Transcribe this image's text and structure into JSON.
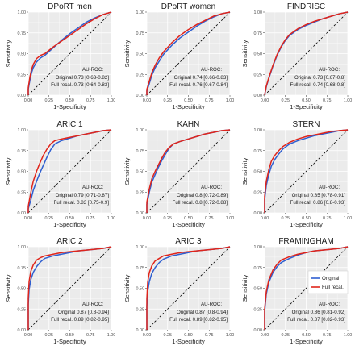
{
  "colors": {
    "original": "#2f5fd0",
    "full_recal": "#e0251b",
    "panel_bg": "#ebebeb",
    "grid": "#ffffff"
  },
  "legend": {
    "original": "Original",
    "full_recal": "Full recal."
  },
  "chart_data": [
    {
      "type": "line",
      "title": "DPoRT men",
      "xlabel": "1-Specificity",
      "ylabel": "Sensitivity",
      "xlim": [
        0,
        1
      ],
      "ylim": [
        0,
        1
      ],
      "ticks": [
        "0.00",
        "0.25",
        "0.50",
        "0.75",
        "1.00"
      ],
      "grid": true,
      "annotation": [
        "AU-ROC:",
        "Original 0.73 [0.63-0.82]",
        "Full recal. 0.73 [0.64-0.83]"
      ],
      "series": [
        {
          "name": "Original",
          "x": [
            0,
            0,
            0.02,
            0.04,
            0.06,
            0.1,
            0.15,
            0.2,
            0.3,
            0.4,
            0.5,
            0.6,
            0.7,
            0.8,
            0.9,
            1
          ],
          "y": [
            0,
            0.07,
            0.18,
            0.27,
            0.33,
            0.4,
            0.45,
            0.48,
            0.57,
            0.66,
            0.74,
            0.81,
            0.88,
            0.93,
            0.97,
            1
          ]
        },
        {
          "name": "Full recal.",
          "x": [
            0,
            0,
            0.02,
            0.04,
            0.06,
            0.1,
            0.15,
            0.2,
            0.3,
            0.4,
            0.5,
            0.6,
            0.7,
            0.8,
            0.9,
            1
          ],
          "y": [
            0,
            0.09,
            0.22,
            0.31,
            0.37,
            0.44,
            0.48,
            0.5,
            0.58,
            0.65,
            0.72,
            0.79,
            0.86,
            0.92,
            0.97,
            1
          ]
        }
      ]
    },
    {
      "type": "line",
      "title": "DPoRT women",
      "xlabel": "1-Specificity",
      "ylabel": "Sensitivity",
      "xlim": [
        0,
        1
      ],
      "ylim": [
        0,
        1
      ],
      "ticks": [
        "0.00",
        "0.25",
        "0.50",
        "0.75",
        "1.00"
      ],
      "grid": true,
      "annotation": [
        "AU-ROC:",
        "Original 0.74 [0.66-0.83]",
        "Full recal. 0.76 [0.67-0.84]"
      ],
      "series": [
        {
          "name": "Original",
          "x": [
            0,
            0,
            0.03,
            0.06,
            0.1,
            0.15,
            0.2,
            0.3,
            0.4,
            0.5,
            0.6,
            0.7,
            0.8,
            0.9,
            1
          ],
          "y": [
            0,
            0.05,
            0.14,
            0.24,
            0.33,
            0.41,
            0.49,
            0.6,
            0.69,
            0.76,
            0.83,
            0.89,
            0.94,
            0.98,
            1
          ]
        },
        {
          "name": "Full recal.",
          "x": [
            0,
            0,
            0.03,
            0.06,
            0.1,
            0.15,
            0.2,
            0.3,
            0.4,
            0.5,
            0.6,
            0.7,
            0.8,
            0.9,
            1
          ],
          "y": [
            0,
            0.07,
            0.17,
            0.27,
            0.36,
            0.45,
            0.52,
            0.63,
            0.72,
            0.79,
            0.85,
            0.9,
            0.95,
            0.98,
            1
          ]
        }
      ]
    },
    {
      "type": "line",
      "title": "FINDRISC",
      "xlabel": "1-Specificity",
      "ylabel": "Sensitivity",
      "xlim": [
        0,
        1
      ],
      "ylim": [
        0,
        1
      ],
      "ticks": [
        "0.00",
        "0.25",
        "0.50",
        "0.75",
        "1.00"
      ],
      "grid": true,
      "annotation": [
        "AU-ROC:",
        "Original 0.73 [0.67-0.8]",
        "Full recal. 0.74 [0.68-0.8]"
      ],
      "series": [
        {
          "name": "Original",
          "x": [
            0,
            0.02,
            0.05,
            0.1,
            0.15,
            0.2,
            0.25,
            0.3,
            0.4,
            0.5,
            0.6,
            0.7,
            0.8,
            0.9,
            1
          ],
          "y": [
            0,
            0.1,
            0.2,
            0.35,
            0.48,
            0.58,
            0.66,
            0.72,
            0.79,
            0.84,
            0.88,
            0.92,
            0.95,
            0.98,
            1
          ]
        },
        {
          "name": "Full recal.",
          "x": [
            0,
            0.02,
            0.05,
            0.1,
            0.15,
            0.2,
            0.25,
            0.3,
            0.4,
            0.5,
            0.6,
            0.7,
            0.8,
            0.9,
            1
          ],
          "y": [
            0,
            0.11,
            0.21,
            0.36,
            0.49,
            0.59,
            0.67,
            0.73,
            0.8,
            0.85,
            0.89,
            0.92,
            0.95,
            0.98,
            1
          ]
        }
      ]
    },
    {
      "type": "line",
      "title": "ARIC 1",
      "xlabel": "1-Specificity",
      "ylabel": "Sensitivity",
      "xlim": [
        0,
        1
      ],
      "ylim": [
        0,
        1
      ],
      "ticks": [
        "0.00",
        "0.25",
        "0.50",
        "0.75",
        "1.00"
      ],
      "grid": true,
      "annotation": [
        "AU-ROC:",
        "Original 0.79 [0.71-0.87]",
        "Full recal. 0.83 [0.75-0.9]"
      ],
      "series": [
        {
          "name": "Original",
          "x": [
            0,
            0,
            0.03,
            0.06,
            0.1,
            0.14,
            0.18,
            0.22,
            0.27,
            0.32,
            0.4,
            0.5,
            0.6,
            0.7,
            0.8,
            0.9,
            1
          ],
          "y": [
            0,
            0.05,
            0.15,
            0.27,
            0.38,
            0.48,
            0.57,
            0.66,
            0.76,
            0.83,
            0.87,
            0.9,
            0.93,
            0.95,
            0.97,
            0.99,
            1
          ]
        },
        {
          "name": "Full recal.",
          "x": [
            0,
            0,
            0.03,
            0.06,
            0.1,
            0.14,
            0.18,
            0.22,
            0.27,
            0.32,
            0.4,
            0.5,
            0.6,
            0.7,
            0.8,
            0.9,
            1
          ],
          "y": [
            0,
            0.08,
            0.24,
            0.38,
            0.5,
            0.6,
            0.69,
            0.76,
            0.83,
            0.87,
            0.89,
            0.91,
            0.93,
            0.95,
            0.97,
            0.99,
            1
          ]
        }
      ]
    },
    {
      "type": "line",
      "title": "KAHN",
      "xlabel": "1-Specificity",
      "ylabel": "Sensitivity",
      "xlim": [
        0,
        1
      ],
      "ylim": [
        0,
        1
      ],
      "ticks": [
        "0.00",
        "0.25",
        "0.50",
        "0.75",
        "1.00"
      ],
      "grid": true,
      "annotation": [
        "AU-ROC:",
        "Original 0.8 [0.72-0.89]",
        "Full recal. 0.8 [0.72-0.88]"
      ],
      "series": [
        {
          "name": "Original",
          "x": [
            0,
            0,
            0.03,
            0.06,
            0.1,
            0.14,
            0.18,
            0.22,
            0.27,
            0.32,
            0.4,
            0.5,
            0.6,
            0.7,
            0.8,
            0.9,
            1
          ],
          "y": [
            0,
            0.1,
            0.25,
            0.37,
            0.46,
            0.55,
            0.63,
            0.7,
            0.78,
            0.83,
            0.86,
            0.89,
            0.92,
            0.95,
            0.97,
            0.99,
            1
          ]
        },
        {
          "name": "Full recal.",
          "x": [
            0,
            0,
            0.03,
            0.06,
            0.1,
            0.14,
            0.18,
            0.22,
            0.27,
            0.32,
            0.4,
            0.5,
            0.6,
            0.7,
            0.8,
            0.9,
            1
          ],
          "y": [
            0,
            0.13,
            0.29,
            0.41,
            0.5,
            0.58,
            0.66,
            0.73,
            0.79,
            0.83,
            0.86,
            0.89,
            0.92,
            0.95,
            0.97,
            0.99,
            1
          ]
        }
      ]
    },
    {
      "type": "line",
      "title": "STERN",
      "xlabel": "1-Specificity",
      "ylabel": "Sensitivity",
      "xlim": [
        0,
        1
      ],
      "ylim": [
        0,
        1
      ],
      "ticks": [
        "0.00",
        "0.25",
        "0.50",
        "0.75",
        "1.00"
      ],
      "grid": true,
      "annotation": [
        "AU-ROC:",
        "Original 0.85 [0.78-0.91]",
        "Full recal. 0.86 [0.8-0.93]"
      ],
      "series": [
        {
          "name": "Original",
          "x": [
            0,
            0,
            0.02,
            0.05,
            0.08,
            0.12,
            0.17,
            0.22,
            0.3,
            0.4,
            0.5,
            0.6,
            0.7,
            0.8,
            0.9,
            1
          ],
          "y": [
            0,
            0.16,
            0.33,
            0.46,
            0.56,
            0.64,
            0.71,
            0.77,
            0.83,
            0.87,
            0.9,
            0.93,
            0.95,
            0.97,
            0.99,
            1
          ]
        },
        {
          "name": "Full recal.",
          "x": [
            0,
            0,
            0.02,
            0.05,
            0.08,
            0.12,
            0.17,
            0.22,
            0.3,
            0.4,
            0.5,
            0.6,
            0.7,
            0.8,
            0.9,
            1
          ],
          "y": [
            0,
            0.2,
            0.38,
            0.52,
            0.62,
            0.69,
            0.75,
            0.8,
            0.85,
            0.89,
            0.92,
            0.94,
            0.96,
            0.98,
            0.99,
            1
          ]
        }
      ]
    },
    {
      "type": "line",
      "title": "ARIC 2",
      "xlabel": "1-Specificity",
      "ylabel": "Sensitivity",
      "xlim": [
        0,
        1
      ],
      "ylim": [
        0,
        1
      ],
      "ticks": [
        "0.00",
        "0.25",
        "0.50",
        "0.75",
        "1.00"
      ],
      "grid": true,
      "annotation": [
        "AU-ROC:",
        "Original 0.87 [0.8-0.94]",
        "Full recal. 0.89 [0.82-0.95]"
      ],
      "series": [
        {
          "name": "Original",
          "x": [
            0,
            0,
            0.01,
            0.03,
            0.06,
            0.1,
            0.15,
            0.2,
            0.3,
            0.4,
            0.5,
            0.6,
            0.7,
            0.8,
            0.9,
            1
          ],
          "y": [
            0,
            0.3,
            0.48,
            0.6,
            0.69,
            0.76,
            0.82,
            0.86,
            0.89,
            0.91,
            0.93,
            0.95,
            0.96,
            0.97,
            0.98,
            1
          ]
        },
        {
          "name": "Full recal.",
          "x": [
            0,
            0,
            0.01,
            0.03,
            0.06,
            0.1,
            0.15,
            0.2,
            0.3,
            0.4,
            0.5,
            0.6,
            0.7,
            0.8,
            0.9,
            1
          ],
          "y": [
            0,
            0.38,
            0.58,
            0.7,
            0.78,
            0.84,
            0.87,
            0.89,
            0.91,
            0.93,
            0.94,
            0.95,
            0.96,
            0.97,
            0.98,
            1
          ]
        }
      ]
    },
    {
      "type": "line",
      "title": "ARIC 3",
      "xlabel": "1-Specificity",
      "ylabel": "Sensitivity",
      "xlim": [
        0,
        1
      ],
      "ylim": [
        0,
        1
      ],
      "ticks": [
        "0.00",
        "0.25",
        "0.50",
        "0.75",
        "1.00"
      ],
      "grid": true,
      "annotation": [
        "AU-ROC:",
        "Original 0.87 [0.8-0.94]",
        "Full recal. 0.89 [0.82-0.95]"
      ],
      "series": [
        {
          "name": "Original",
          "x": [
            0,
            0,
            0.01,
            0.03,
            0.06,
            0.1,
            0.15,
            0.2,
            0.3,
            0.4,
            0.5,
            0.6,
            0.7,
            0.8,
            0.9,
            1
          ],
          "y": [
            0,
            0.28,
            0.46,
            0.58,
            0.68,
            0.75,
            0.81,
            0.85,
            0.89,
            0.91,
            0.93,
            0.95,
            0.96,
            0.97,
            0.98,
            1
          ]
        },
        {
          "name": "Full recal.",
          "x": [
            0,
            0,
            0.01,
            0.03,
            0.06,
            0.1,
            0.15,
            0.2,
            0.3,
            0.4,
            0.5,
            0.6,
            0.7,
            0.8,
            0.9,
            1
          ],
          "y": [
            0,
            0.37,
            0.57,
            0.69,
            0.77,
            0.83,
            0.86,
            0.89,
            0.91,
            0.93,
            0.94,
            0.95,
            0.96,
            0.97,
            0.98,
            1
          ]
        }
      ]
    },
    {
      "type": "line",
      "title": "FRAMINGHAM",
      "xlabel": "1-Specificity",
      "ylabel": "Sensitivity",
      "xlim": [
        0,
        1
      ],
      "ylim": [
        0,
        1
      ],
      "ticks": [
        "0.00",
        "0.25",
        "0.50",
        "0.75",
        "1.00"
      ],
      "grid": true,
      "legend_position": "right",
      "show_legend": true,
      "annotation": [
        "AU-ROC:",
        "Original 0.86 [0.81-0.92]",
        "Full recal. 0.87 [0.82-0.93]"
      ],
      "series": [
        {
          "name": "Original",
          "x": [
            0,
            0,
            0.02,
            0.05,
            0.1,
            0.15,
            0.2,
            0.3,
            0.4,
            0.5,
            0.6,
            0.7,
            0.8,
            0.9,
            1
          ],
          "y": [
            0,
            0.22,
            0.43,
            0.57,
            0.69,
            0.76,
            0.81,
            0.86,
            0.9,
            0.93,
            0.95,
            0.96,
            0.97,
            0.98,
            1
          ]
        },
        {
          "name": "Full recal.",
          "x": [
            0,
            0,
            0.02,
            0.05,
            0.1,
            0.15,
            0.2,
            0.3,
            0.4,
            0.5,
            0.6,
            0.7,
            0.8,
            0.9,
            1
          ],
          "y": [
            0,
            0.25,
            0.46,
            0.6,
            0.72,
            0.79,
            0.84,
            0.88,
            0.91,
            0.93,
            0.95,
            0.96,
            0.97,
            0.98,
            1
          ]
        }
      ]
    }
  ]
}
